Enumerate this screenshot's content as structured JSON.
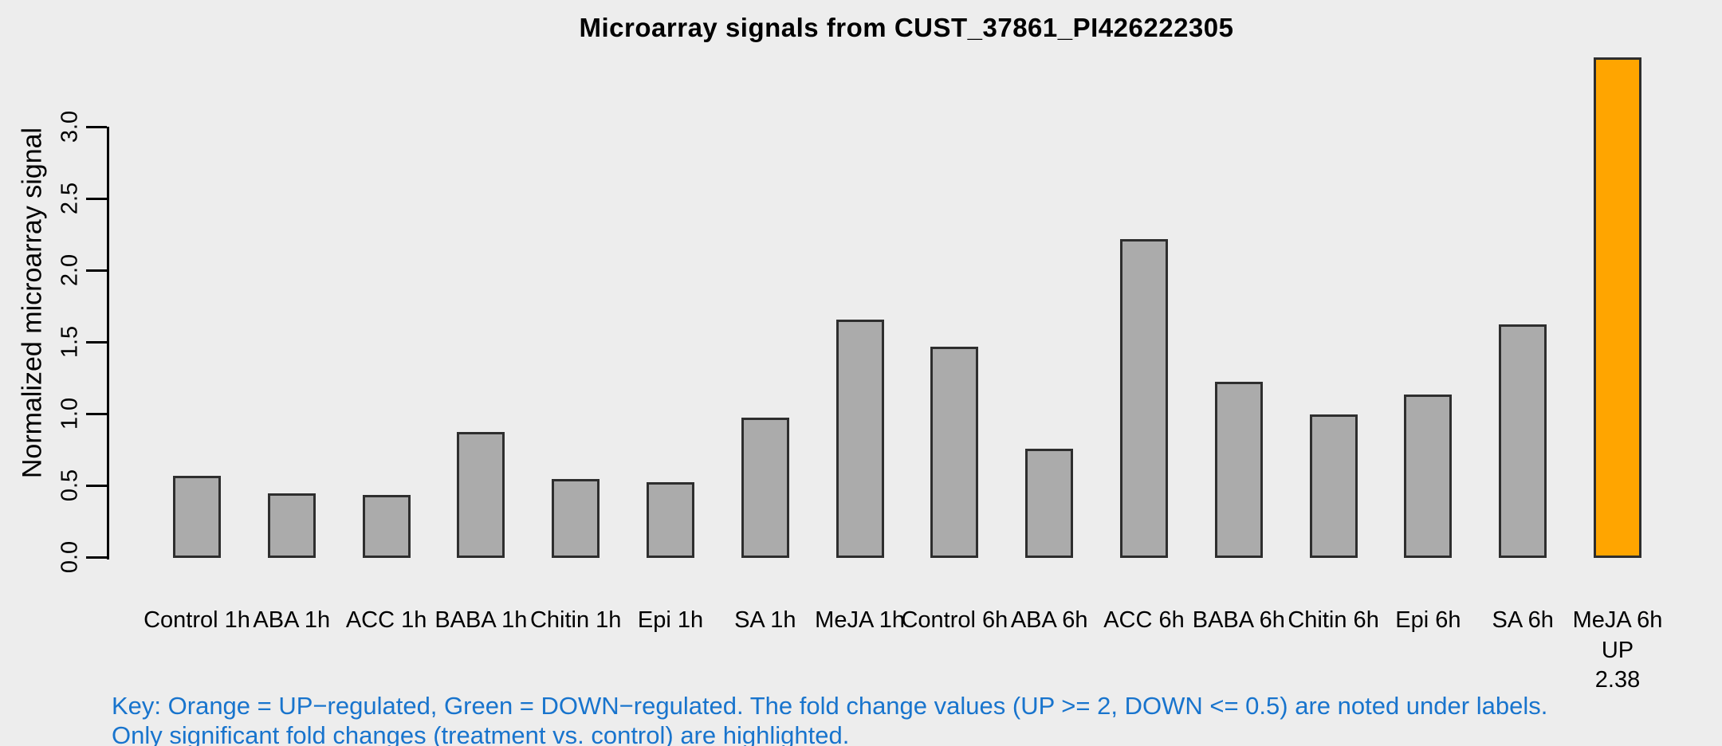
{
  "page": {
    "background_color": "#EDEDED"
  },
  "chart_data": {
    "type": "bar",
    "title": "Microarray signals from CUST_37861_PI426222305",
    "xlabel": "",
    "ylabel": "Normalized microarray signal",
    "ylim": [
      0,
      3.0
    ],
    "yticks": [
      0.0,
      0.5,
      1.0,
      1.5,
      2.0,
      2.5,
      3.0
    ],
    "grid": false,
    "legend": false,
    "bar_color": "#ABABAB",
    "bar_border_color": "#2E2E2E",
    "categories": [
      "Control 1h",
      "ABA 1h",
      "ACC 1h",
      "BABA 1h",
      "Chitin 1h",
      "Epi 1h",
      "SA 1h",
      "MeJA 1h",
      "Control 6h",
      "ABA 6h",
      "ACC 6h",
      "BABA 6h",
      "Chitin 6h",
      "Epi 6h",
      "SA 6h",
      "MeJA 6h"
    ],
    "values": [
      0.57,
      0.45,
      0.44,
      0.88,
      0.55,
      0.53,
      0.98,
      1.66,
      1.47,
      0.76,
      2.22,
      1.23,
      1.0,
      1.14,
      1.63,
      3.49
    ],
    "highlights": [
      {
        "index": 15,
        "direction": "UP",
        "fold_change": "2.38",
        "color": "#FFA500"
      }
    ]
  },
  "key": {
    "color": "#1874CD",
    "line1": "Key: Orange = UP−regulated, Green = DOWN−regulated. The fold change values (UP >= 2, DOWN <= 0.5) are noted under labels.",
    "line2": "Only significant fold changes (treatment vs. control) are highlighted."
  }
}
